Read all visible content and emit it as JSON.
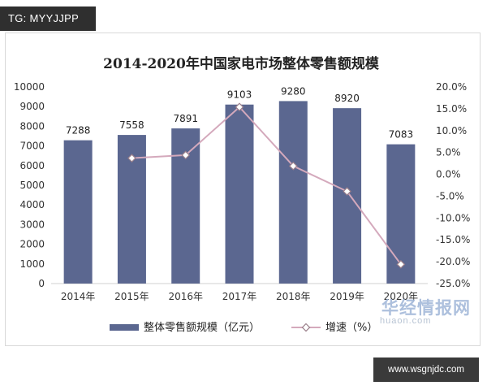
{
  "tag_label": "TG: MYYJJPP",
  "watermark_cn": "华经情报网",
  "watermark_en": "huaon.com",
  "footer_url": "www.wsgnjdc.com",
  "colors": {
    "bar": "#5b6790",
    "line": "#d4a9bc",
    "marker_fill": "#ffffff",
    "axis": "#d0d0d0"
  },
  "chart_data": {
    "type": "bar",
    "title": "2014-2020年中国家电市场整体零售额规模",
    "categories": [
      "2014年",
      "2015年",
      "2016年",
      "2017年",
      "2018年",
      "2019年",
      "2020年"
    ],
    "series": [
      {
        "name": "整体零售额规模（亿元）",
        "type": "bar",
        "axis": "left",
        "values": [
          7288,
          7558,
          7891,
          9103,
          9280,
          8920,
          7083
        ],
        "labels": [
          "7288",
          "7558",
          "7891",
          "9103",
          "9280",
          "8920",
          "7083"
        ]
      },
      {
        "name": "增速（%）",
        "type": "line",
        "axis": "right",
        "values": [
          null,
          3.7,
          4.4,
          15.4,
          1.9,
          -3.9,
          -20.6
        ]
      }
    ],
    "y_left": {
      "min": 0,
      "max": 10000,
      "step": 1000,
      "ticks": [
        "0",
        "1000",
        "2000",
        "3000",
        "4000",
        "5000",
        "6000",
        "7000",
        "8000",
        "9000",
        "10000"
      ]
    },
    "y_right": {
      "min": -25,
      "max": 20,
      "step": 5,
      "ticks": [
        "-25.0%",
        "-20.0%",
        "-15.0%",
        "-10.0%",
        "-5.0%",
        "0.0%",
        "5.0%",
        "10.0%",
        "15.0%",
        "20.0%"
      ]
    },
    "grid": false,
    "legend_position": "bottom"
  }
}
